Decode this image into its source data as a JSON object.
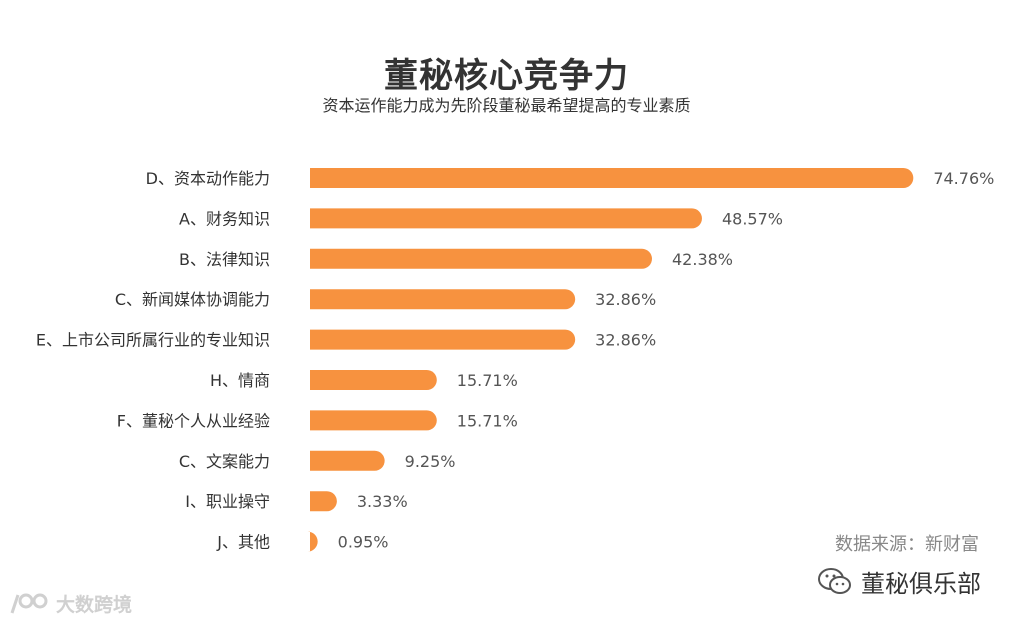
{
  "chart_data": {
    "type": "bar",
    "orientation": "horizontal",
    "title": "董秘核心竞争力",
    "subtitle": "资本运作能力成为先阶段董秘最希望提高的专业素质",
    "categories": [
      "D、资本动作能力",
      "A、财务知识",
      "B、法律知识",
      "C、新闻媒体协调能力",
      "E、上市公司所属行业的专业知识",
      "H、情商",
      "F、董秘个人从业经验",
      "C、文案能力",
      "I、职业操守",
      "J、其他"
    ],
    "values": [
      74.76,
      48.57,
      42.38,
      32.86,
      32.86,
      15.71,
      15.71,
      9.25,
      3.33,
      0.95
    ],
    "value_labels": [
      "74.76%",
      "48.57%",
      "42.38%",
      "32.86%",
      "32.86%",
      "15.71%",
      "15.71%",
      "9.25%",
      "3.33%",
      "0.95%"
    ],
    "xlim": [
      0,
      100
    ],
    "grid": false,
    "bar_color": "#F7923F"
  },
  "source_text": "数据来源：新财富",
  "brand_text": "董秘俱乐部",
  "watermark_text": "大数跨境",
  "colors": {
    "bar": "#F7923F",
    "text": "#333333",
    "label": "#555555",
    "source": "#888888"
  }
}
